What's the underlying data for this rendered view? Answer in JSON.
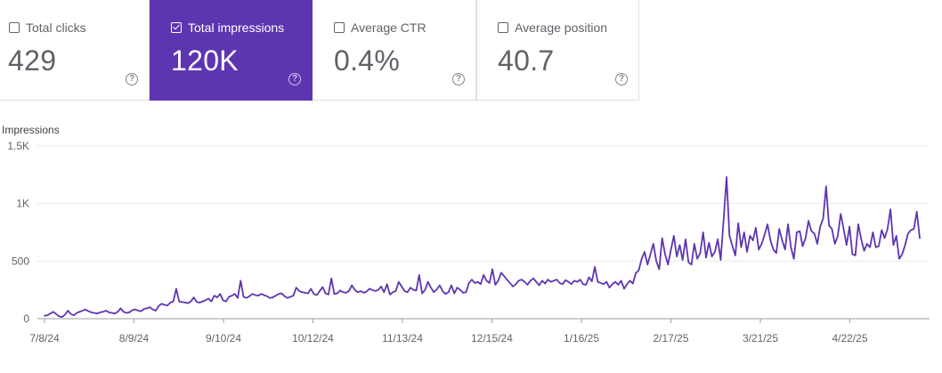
{
  "metrics": [
    {
      "label": "Total clicks",
      "value": "429",
      "checked": false
    },
    {
      "label": "Total impressions",
      "value": "120K",
      "checked": true
    },
    {
      "label": "Average CTR",
      "value": "0.4%",
      "checked": false
    },
    {
      "label": "Average position",
      "value": "40.7",
      "checked": false
    }
  ],
  "help_glyph": "?",
  "colors": {
    "accent": "#5e35b1",
    "line": "#5e35b1",
    "grid": "#e8eaed"
  },
  "chart_data": {
    "type": "line",
    "ylabel": "Impressions",
    "ylim": [
      0,
      1500
    ],
    "yticks": [
      0,
      500,
      1000,
      1500
    ],
    "ytick_labels": [
      "0",
      "500",
      "1K",
      "1.5K"
    ],
    "xlim": [
      "2024-07-08",
      "2025-05-17"
    ],
    "xtick_labels": [
      "7/8/24",
      "8/9/24",
      "9/10/24",
      "10/12/24",
      "11/13/24",
      "12/15/24",
      "1/16/25",
      "2/17/25",
      "3/21/25",
      "4/22/25"
    ],
    "series": [
      {
        "values": [
          25,
          30,
          45,
          60,
          40,
          20,
          15,
          35,
          70,
          40,
          30,
          50,
          60,
          70,
          80,
          65,
          55,
          50,
          45,
          55,
          60,
          70,
          55,
          50,
          45,
          60,
          90,
          60,
          50,
          55,
          75,
          80,
          70,
          65,
          85,
          90,
          100,
          80,
          70,
          110,
          130,
          120,
          115,
          140,
          150,
          260,
          150,
          145,
          140,
          135,
          150,
          185,
          145,
          140,
          150,
          160,
          175,
          150,
          200,
          185,
          215,
          160,
          150,
          190,
          200,
          215,
          180,
          330,
          190,
          180,
          195,
          215,
          205,
          200,
          215,
          205,
          195,
          180,
          185,
          200,
          215,
          220,
          195,
          180,
          190,
          200,
          270,
          240,
          230,
          225,
          220,
          260,
          215,
          205,
          240,
          275,
          220,
          210,
          350,
          215,
          220,
          245,
          230,
          225,
          240,
          290,
          250,
          230,
          240,
          225,
          235,
          260,
          250,
          240,
          250,
          280,
          230,
          300,
          210,
          230,
          240,
          320,
          280,
          240,
          230,
          270,
          250,
          245,
          380,
          220,
          250,
          320,
          270,
          230,
          255,
          290,
          240,
          215,
          230,
          290,
          220,
          270,
          250,
          225,
          230,
          310,
          340,
          310,
          320,
          300,
          380,
          330,
          310,
          430,
          295,
          330,
          400,
          370,
          340,
          310,
          280,
          300,
          330,
          340,
          320,
          295,
          330,
          350,
          320,
          290,
          330,
          305,
          340,
          320,
          330,
          340,
          310,
          300,
          335,
          320,
          300,
          330,
          320,
          340,
          300,
          295,
          360,
          325,
          450,
          320,
          310,
          300,
          320,
          270,
          300,
          320,
          295,
          330,
          260,
          300,
          330,
          305,
          395,
          420,
          520,
          580,
          470,
          560,
          650,
          500,
          430,
          700,
          560,
          470,
          600,
          720,
          540,
          640,
          510,
          690,
          490,
          470,
          650,
          520,
          570,
          750,
          530,
          660,
          540,
          580,
          690,
          510,
          860,
          1230,
          720,
          630,
          550,
          830,
          620,
          750,
          580,
          720,
          680,
          790,
          600,
          650,
          730,
          820,
          680,
          600,
          570,
          780,
          680,
          600,
          820,
          620,
          520,
          750,
          760,
          630,
          700,
          850,
          760,
          740,
          650,
          800,
          870,
          1150,
          810,
          780,
          650,
          720,
          910,
          780,
          640,
          800,
          560,
          550,
          820,
          690,
          590,
          650,
          620,
          750,
          620,
          630,
          770,
          700,
          780,
          950,
          640,
          720,
          520,
          560,
          640,
          740,
          770,
          780,
          930,
          700
        ]
      }
    ]
  }
}
